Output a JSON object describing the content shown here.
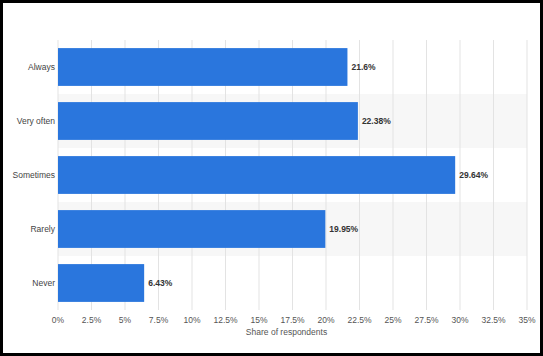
{
  "chart_data": {
    "type": "bar",
    "orientation": "horizontal",
    "categories": [
      "Always",
      "Very often",
      "Sometimes",
      "Rarely",
      "Never"
    ],
    "values": [
      21.6,
      22.38,
      29.64,
      19.95,
      6.43
    ],
    "value_labels": [
      "21.6%",
      "22.38%",
      "29.64%",
      "19.95%",
      "6.43%"
    ],
    "color": "#2a76dd",
    "xlabel": "Share of respondents",
    "xlim": [
      0,
      35
    ],
    "xticks": [
      {
        "value": 0,
        "label": "0%"
      },
      {
        "value": 2.5,
        "label": "2.5%"
      },
      {
        "value": 5,
        "label": "5%"
      },
      {
        "value": 7.5,
        "label": "7.5%"
      },
      {
        "value": 10,
        "label": "10%"
      },
      {
        "value": 12.5,
        "label": "12.5%"
      },
      {
        "value": 15,
        "label": "15%"
      },
      {
        "value": 17.5,
        "label": "17.5%"
      },
      {
        "value": 20,
        "label": "20%"
      },
      {
        "value": 22.5,
        "label": "22.5%"
      },
      {
        "value": 25,
        "label": "25%"
      },
      {
        "value": 27.5,
        "label": "27.5%"
      },
      {
        "value": 30,
        "label": "30%"
      },
      {
        "value": 32.5,
        "label": "32.5%"
      },
      {
        "value": 35,
        "label": "35%"
      }
    ],
    "grid": true,
    "data_labels": true
  }
}
